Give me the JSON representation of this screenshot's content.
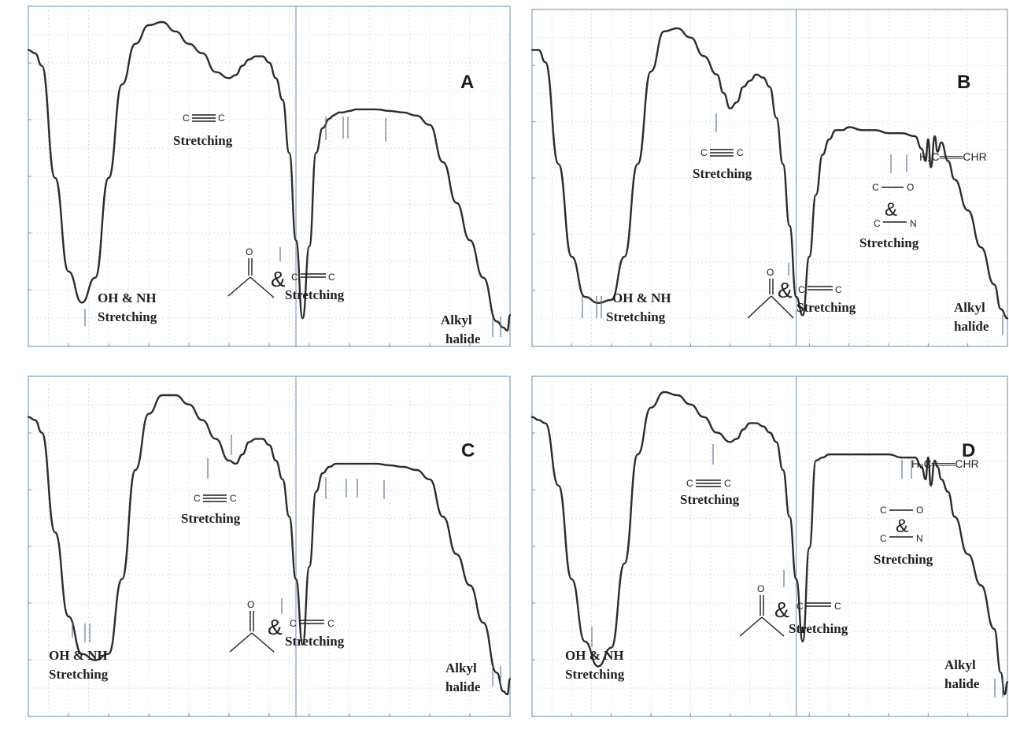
{
  "colors": {
    "spectrum": "#2c2c2c",
    "frame": "#7f9fbf",
    "grid": "#c8d6e6",
    "major_grid": "#6f8fb0",
    "background": "#ffffff"
  },
  "chart_data": [
    {
      "type": "line",
      "panel": "A",
      "panel_label": "A",
      "xlim": [
        4000,
        400
      ],
      "ylim": [
        0,
        100
      ],
      "x": [
        4000,
        3950,
        3900,
        3800,
        3700,
        3600,
        3500,
        3400,
        3300,
        3200,
        3100,
        3000,
        2900,
        2800,
        2700,
        2600,
        2500,
        2450,
        2400,
        2350,
        2300,
        2250,
        2200,
        2150,
        2100,
        2050,
        2000,
        1950,
        1900,
        1850,
        1800,
        1750,
        1720,
        1700,
        1680,
        1650,
        1600,
        1550,
        1500,
        1400,
        1300,
        1200,
        1100,
        1000,
        900,
        800,
        700,
        600,
        500,
        450,
        420,
        400
      ],
      "y": [
        91,
        90,
        86,
        50,
        20,
        10,
        18,
        50,
        80,
        93,
        99,
        100,
        97,
        93,
        90,
        84,
        82,
        83,
        86,
        88,
        89,
        89,
        87,
        82,
        75,
        58,
        30,
        5,
        28,
        58,
        66,
        69,
        70,
        70.5,
        71,
        71,
        71.5,
        72,
        72,
        72,
        71.5,
        71,
        70,
        67,
        55,
        42,
        30,
        18,
        4,
        2,
        1,
        6
      ]
    },
    {
      "type": "line",
      "panel": "B",
      "panel_label": "B",
      "xlim": [
        4000,
        400
      ],
      "ylim": [
        0,
        100
      ],
      "x": [
        4000,
        3950,
        3900,
        3800,
        3700,
        3600,
        3500,
        3400,
        3300,
        3200,
        3100,
        3000,
        2900,
        2800,
        2700,
        2600,
        2550,
        2500,
        2450,
        2400,
        2350,
        2300,
        2250,
        2200,
        2150,
        2100,
        2050,
        2000,
        1950,
        1900,
        1850,
        1800,
        1750,
        1700,
        1650,
        1600,
        1500,
        1400,
        1300,
        1200,
        1100,
        1050,
        1020,
        1000,
        980,
        950,
        930,
        900,
        850,
        800,
        700,
        600,
        500,
        450,
        400
      ],
      "y": [
        92,
        92,
        88,
        55,
        25,
        12,
        10,
        11,
        25,
        55,
        85,
        98,
        99,
        96,
        90,
        84,
        78,
        73,
        75,
        80,
        82,
        84,
        83,
        80,
        70,
        55,
        35,
        12,
        6,
        25,
        45,
        58,
        63,
        66,
        66,
        67,
        66,
        66,
        65,
        65,
        64,
        60,
        56,
        63,
        54,
        64,
        59,
        62,
        56,
        50,
        40,
        28,
        16,
        8,
        5
      ]
    },
    {
      "type": "line",
      "panel": "C",
      "panel_label": "C",
      "xlim": [
        4000,
        400
      ],
      "ylim": [
        0,
        100
      ],
      "x": [
        4000,
        3950,
        3900,
        3800,
        3700,
        3600,
        3500,
        3400,
        3300,
        3200,
        3100,
        3000,
        2900,
        2800,
        2700,
        2600,
        2500,
        2450,
        2400,
        2350,
        2300,
        2250,
        2200,
        2150,
        2100,
        2050,
        2000,
        1950,
        1900,
        1850,
        1800,
        1750,
        1700,
        1600,
        1500,
        1400,
        1300,
        1200,
        1100,
        1000,
        900,
        800,
        700,
        600,
        500,
        450,
        420,
        400
      ],
      "y": [
        92,
        91,
        87,
        55,
        28,
        16,
        14,
        16,
        40,
        75,
        93,
        99,
        99,
        96,
        91,
        85,
        78,
        77,
        80,
        84,
        85,
        85,
        83,
        78,
        72,
        60,
        40,
        19,
        44,
        68,
        74,
        76,
        77,
        77,
        77,
        77,
        76.5,
        76,
        75,
        72,
        60,
        48,
        38,
        26,
        10,
        4,
        3,
        8
      ]
    },
    {
      "type": "line",
      "panel": "D",
      "panel_label": "D",
      "xlim": [
        4000,
        400
      ],
      "ylim": [
        0,
        100
      ],
      "x": [
        4000,
        3950,
        3900,
        3800,
        3700,
        3600,
        3500,
        3400,
        3300,
        3200,
        3100,
        3000,
        2900,
        2800,
        2700,
        2600,
        2500,
        2450,
        2400,
        2350,
        2300,
        2250,
        2200,
        2150,
        2100,
        2050,
        2000,
        1950,
        1900,
        1850,
        1800,
        1750,
        1700,
        1600,
        1500,
        1400,
        1300,
        1200,
        1100,
        1050,
        1020,
        1000,
        980,
        950,
        930,
        900,
        850,
        800,
        700,
        600,
        500,
        450,
        420,
        400
      ],
      "y": [
        92,
        91,
        90,
        70,
        40,
        20,
        12,
        18,
        45,
        80,
        95,
        100,
        99,
        96,
        92,
        87,
        84,
        85,
        88,
        90,
        90,
        89,
        87,
        84,
        75,
        60,
        40,
        20,
        50,
        78,
        79,
        80,
        80,
        80,
        80,
        80,
        80,
        79,
        79,
        76,
        72,
        79,
        70,
        78,
        76,
        72,
        68,
        60,
        48,
        38,
        24,
        10,
        3,
        7
      ]
    }
  ],
  "annotations": {
    "A": {
      "letter": "A",
      "oh_nh": "OH & NH",
      "stretching": "Stretching",
      "alkyl": "Alkyl",
      "halide": "halide",
      "triple_left": "C",
      "triple_right": "C",
      "carbonyl_amp": "&",
      "carbonyl_o": "O",
      "carbonyl_c": "C"
    },
    "B": {
      "letter": "B",
      "oh_nh": "OH & NH",
      "stretching": "Stretching",
      "alkyl": "Alkyl",
      "halide": "halide",
      "triple_left": "C",
      "triple_right": "C",
      "carbonyl_amp": "&",
      "carbonyl_o": "O",
      "carbonyl_c": "C",
      "vinyl": "H₂C═══CHR",
      "co_label_c": "C",
      "co_label_o": "O",
      "cn_label_c": "C",
      "cn_label_n": "N"
    },
    "C": {
      "letter": "C",
      "oh_nh": "OH & NH",
      "stretching": "Stretching",
      "alkyl": "Alkyl",
      "halide": "halide",
      "triple_left": "C",
      "triple_right": "C",
      "carbonyl_amp": "&",
      "carbonyl_o": "O",
      "carbonyl_c": "C"
    },
    "D": {
      "letter": "D",
      "oh_nh": "OH & NH",
      "stretching": "Stretching",
      "alkyl": "Alkyl",
      "halide": "halide",
      "triple_left": "C",
      "triple_right": "C",
      "carbonyl_amp": "&",
      "carbonyl_o": "O",
      "carbonyl_c": "C",
      "vinyl": "H₂C═══CHR",
      "co_label_c": "C",
      "co_label_o": "O",
      "cn_label_c": "C",
      "cn_label_n": "N"
    }
  }
}
